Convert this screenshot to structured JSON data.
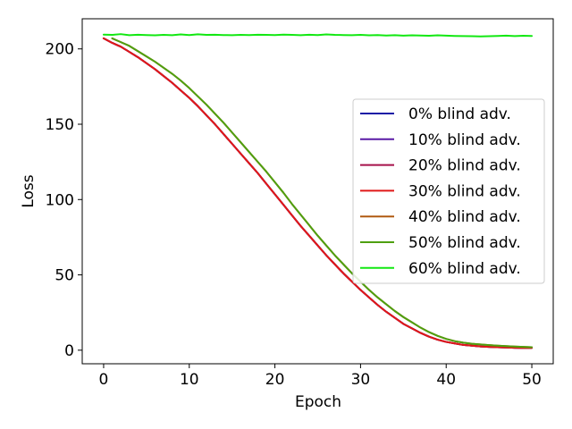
{
  "chart_data": {
    "type": "line",
    "title": "",
    "xlabel": "Epoch",
    "ylabel": "Loss",
    "xlim": [
      -2.5,
      52.5
    ],
    "ylim": [
      -9,
      220
    ],
    "xticks": [
      0,
      10,
      20,
      30,
      40,
      50
    ],
    "yticks": [
      0,
      50,
      100,
      150,
      200
    ],
    "grid": false,
    "legend_position": "center-right",
    "x": [
      0,
      1,
      2,
      3,
      4,
      5,
      6,
      7,
      8,
      9,
      10,
      11,
      12,
      13,
      14,
      15,
      16,
      17,
      18,
      19,
      20,
      21,
      22,
      23,
      24,
      25,
      26,
      27,
      28,
      29,
      30,
      31,
      32,
      33,
      34,
      35,
      36,
      37,
      38,
      39,
      40,
      41,
      42,
      43,
      44,
      45,
      46,
      47,
      48,
      49,
      50
    ],
    "series": [
      {
        "name": "0% blind adv.",
        "color": "#1a1aa6",
        "values": [
          207.0,
          204.0,
          201.5,
          198.0,
          194.5,
          190.5,
          186.5,
          182.0,
          177.5,
          172.5,
          167.5,
          162.0,
          156.0,
          150.0,
          143.5,
          137.0,
          130.5,
          124.0,
          117.5,
          110.5,
          103.5,
          96.5,
          89.5,
          82.5,
          76.0,
          69.5,
          63.0,
          57.0,
          51.0,
          45.5,
          40.0,
          35.0,
          30.0,
          25.5,
          21.5,
          17.5,
          14.5,
          11.5,
          9.0,
          7.0,
          5.5,
          4.5,
          3.5,
          3.0,
          2.5,
          2.2,
          2.0,
          1.8,
          1.6,
          1.5,
          1.5
        ]
      },
      {
        "name": "10% blind adv.",
        "color": "#5a1aa6",
        "values": [
          207.0,
          204.0,
          201.5,
          198.0,
          194.5,
          190.5,
          186.5,
          182.0,
          177.5,
          172.5,
          167.5,
          162.0,
          156.0,
          150.0,
          143.5,
          137.0,
          130.5,
          124.0,
          117.5,
          110.5,
          103.5,
          96.5,
          89.5,
          82.5,
          76.0,
          69.5,
          63.0,
          57.0,
          51.0,
          45.5,
          40.0,
          35.0,
          30.0,
          25.5,
          21.5,
          17.5,
          14.5,
          11.5,
          9.0,
          7.0,
          5.5,
          4.5,
          3.5,
          3.0,
          2.5,
          2.2,
          2.0,
          1.8,
          1.6,
          1.5,
          1.5
        ]
      },
      {
        "name": "20% blind adv.",
        "color": "#a6104a",
        "values": [
          207.0,
          204.0,
          201.5,
          198.0,
          194.5,
          190.5,
          186.5,
          182.0,
          177.5,
          172.5,
          167.5,
          162.0,
          156.0,
          150.0,
          143.5,
          137.0,
          130.5,
          124.0,
          117.5,
          110.5,
          103.5,
          96.5,
          89.5,
          82.5,
          76.0,
          69.5,
          63.0,
          57.0,
          51.0,
          45.5,
          40.0,
          35.0,
          30.0,
          25.5,
          21.5,
          17.5,
          14.5,
          11.5,
          9.0,
          7.0,
          5.5,
          4.5,
          3.5,
          3.0,
          2.5,
          2.2,
          2.0,
          1.8,
          1.6,
          1.5,
          1.5
        ]
      },
      {
        "name": "30% blind adv.",
        "color": "#e01818",
        "values": [
          207.0,
          204.0,
          201.5,
          198.0,
          194.5,
          190.5,
          186.5,
          182.0,
          177.5,
          172.5,
          167.5,
          162.0,
          156.0,
          150.0,
          143.5,
          137.0,
          130.5,
          124.0,
          117.5,
          110.5,
          103.5,
          96.5,
          89.5,
          82.5,
          76.0,
          69.5,
          63.0,
          57.0,
          51.0,
          45.5,
          40.0,
          35.0,
          30.0,
          25.5,
          21.5,
          17.5,
          14.5,
          11.5,
          9.0,
          7.0,
          5.5,
          4.5,
          3.5,
          3.0,
          2.5,
          2.2,
          2.0,
          1.8,
          1.6,
          1.5,
          1.5
        ]
      },
      {
        "name": "40% blind adv.",
        "color": "#b05a10",
        "values": [
          null,
          207.0,
          204.5,
          202.0,
          198.5,
          195.0,
          191.5,
          187.5,
          183.5,
          179.0,
          174.0,
          168.5,
          163.0,
          157.0,
          151.0,
          144.5,
          138.0,
          131.5,
          125.0,
          118.5,
          111.5,
          104.5,
          97.0,
          90.0,
          83.0,
          76.0,
          69.5,
          63.0,
          57.0,
          51.0,
          45.5,
          40.0,
          35.0,
          30.5,
          26.0,
          22.0,
          18.5,
          15.0,
          12.0,
          9.5,
          7.5,
          6.0,
          5.0,
          4.3,
          3.8,
          3.4,
          3.0,
          2.7,
          2.4,
          2.2,
          2.0
        ]
      },
      {
        "name": "50% blind adv.",
        "color": "#4ea010",
        "values": [
          null,
          207.0,
          204.5,
          202.0,
          198.5,
          195.0,
          191.5,
          187.5,
          183.5,
          179.0,
          174.0,
          168.5,
          163.0,
          157.0,
          151.0,
          144.5,
          138.0,
          131.5,
          125.0,
          118.5,
          111.5,
          104.5,
          97.0,
          90.0,
          83.0,
          76.0,
          69.5,
          63.0,
          57.0,
          51.0,
          45.5,
          40.0,
          35.0,
          30.5,
          26.0,
          22.0,
          18.5,
          15.0,
          12.0,
          9.5,
          7.5,
          6.0,
          5.0,
          4.3,
          3.8,
          3.4,
          3.0,
          2.7,
          2.4,
          2.2,
          2.0
        ]
      },
      {
        "name": "60% blind adv.",
        "color": "#12e812",
        "values": [
          209.5,
          209.3,
          209.8,
          209.1,
          209.4,
          209.2,
          209.0,
          209.3,
          209.1,
          209.6,
          209.2,
          209.7,
          209.3,
          209.4,
          209.2,
          209.1,
          209.3,
          209.2,
          209.4,
          209.3,
          209.2,
          209.5,
          209.3,
          209.1,
          209.4,
          209.2,
          209.6,
          209.3,
          209.2,
          209.1,
          209.3,
          209.0,
          209.2,
          208.9,
          209.1,
          208.8,
          209.0,
          208.9,
          208.7,
          209.0,
          208.8,
          208.6,
          208.5,
          208.4,
          208.3,
          208.4,
          208.6,
          208.8,
          208.5,
          208.7,
          208.6
        ]
      }
    ]
  }
}
